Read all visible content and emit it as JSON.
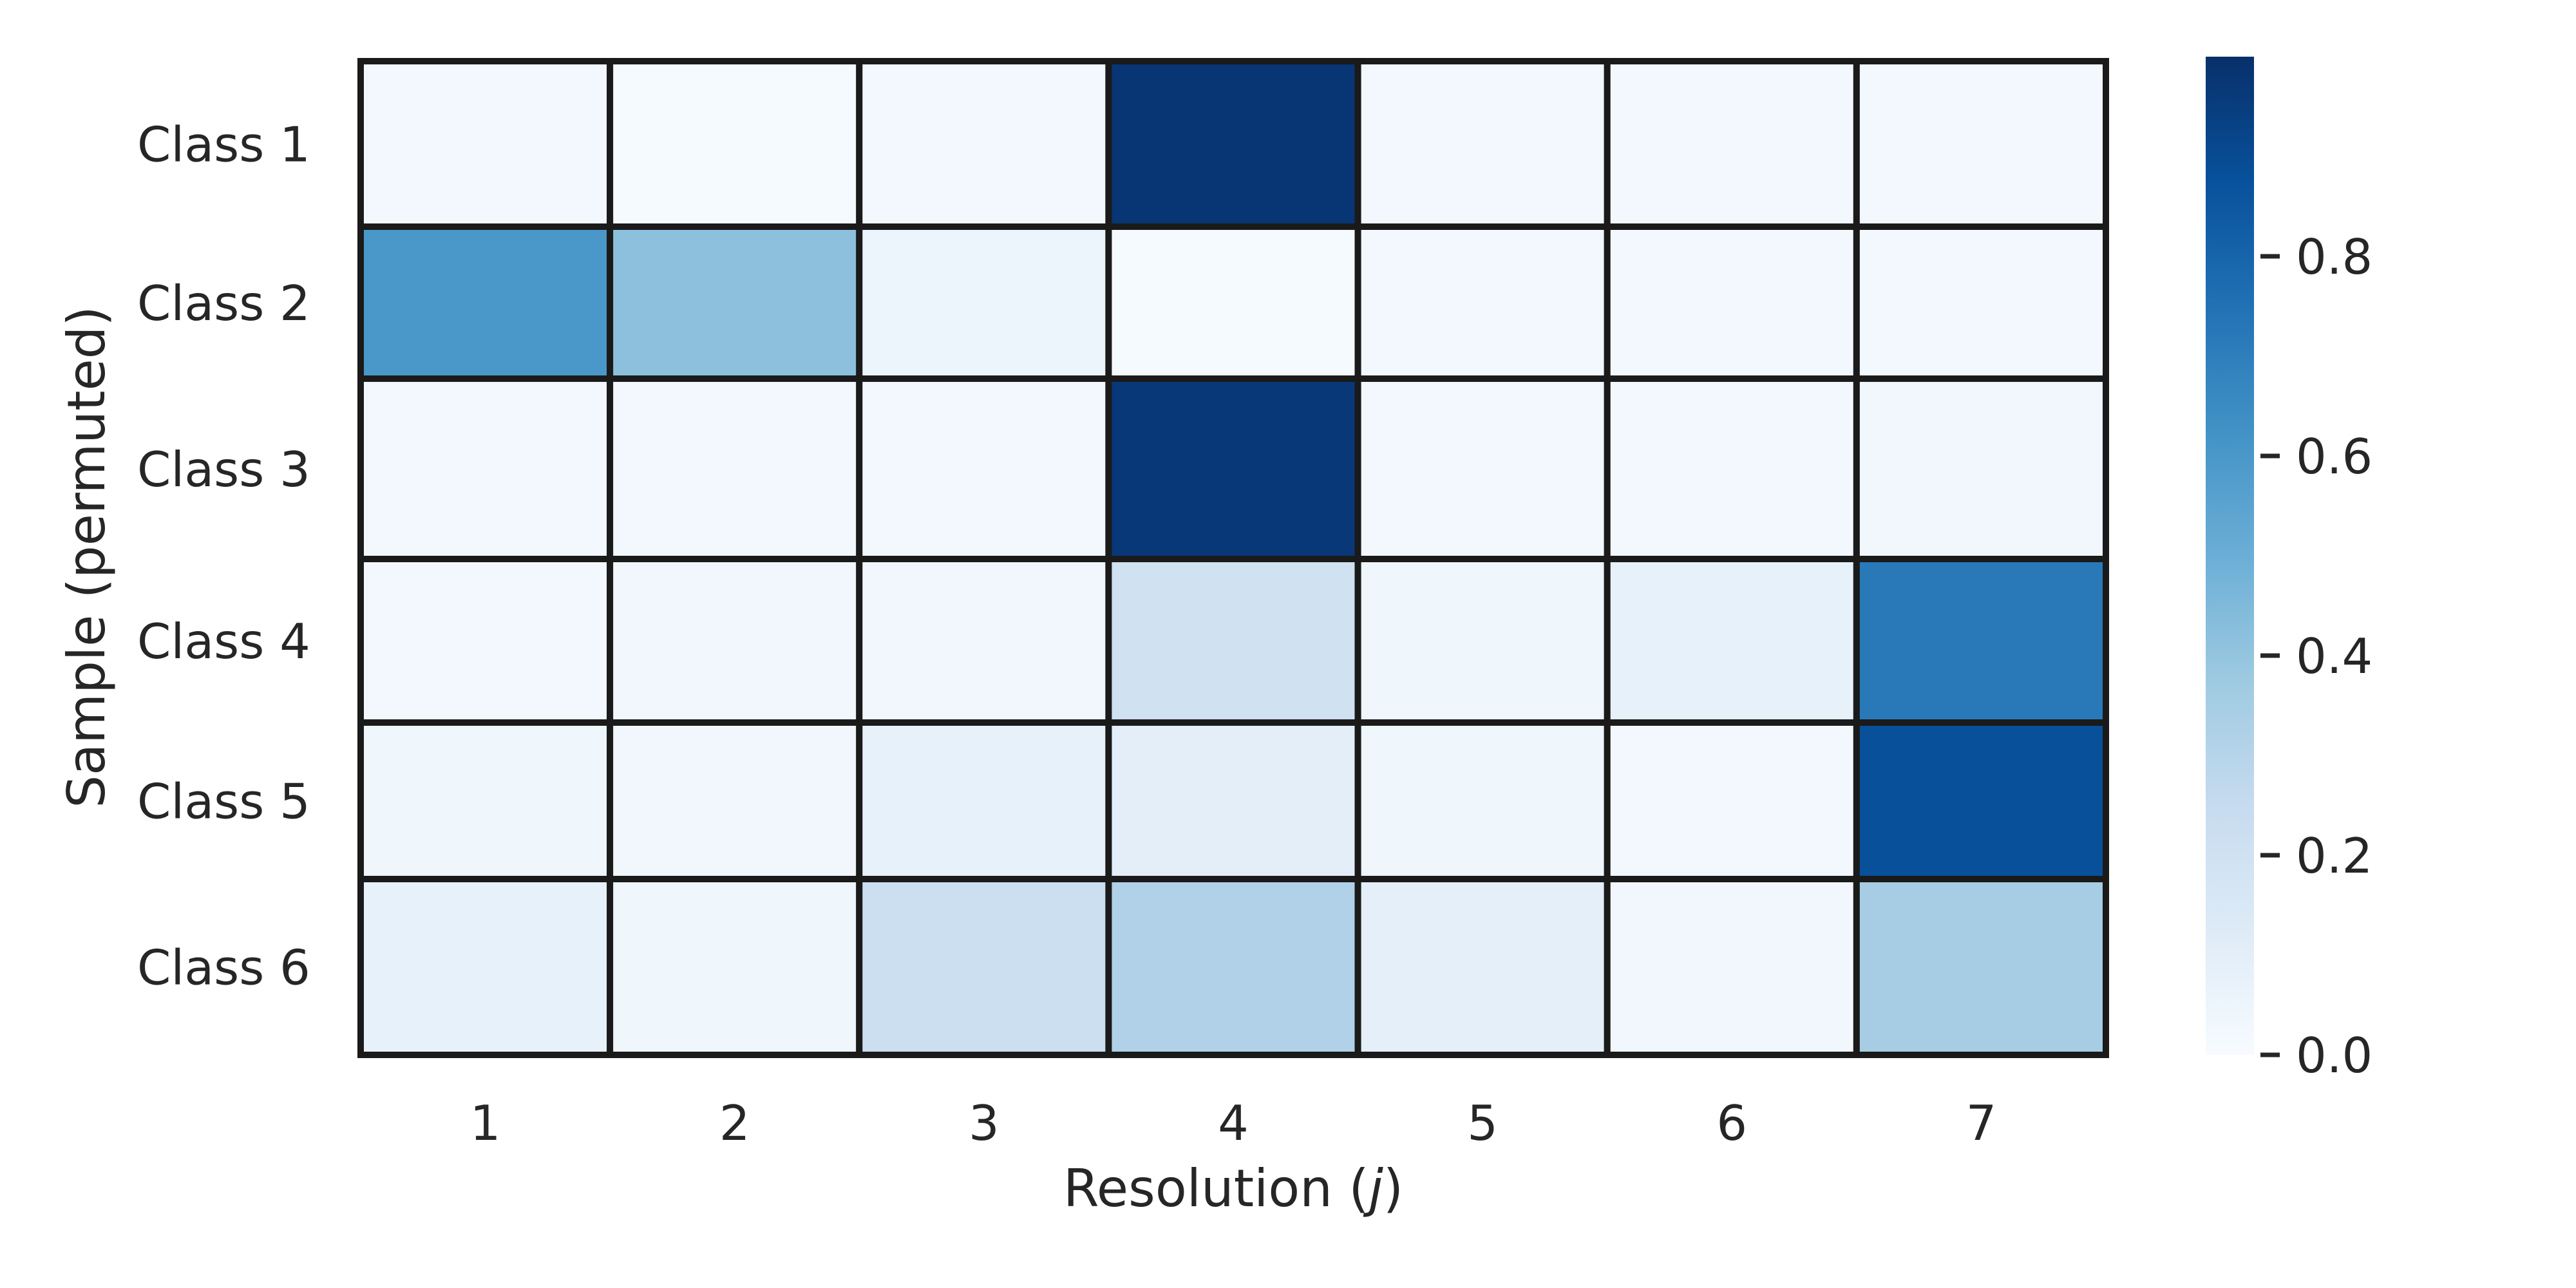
{
  "chart_data": {
    "type": "heatmap",
    "title": "",
    "xlabel": "Resolution (",
    "xlabel_var": "j",
    "xlabel_close": ")",
    "ylabel": "Sample (permuted)",
    "categories": [
      "1",
      "2",
      "3",
      "4",
      "5",
      "6",
      "7"
    ],
    "rows": [
      "Class 1",
      "Class 2",
      "Class 3",
      "Class 4",
      "Class 5",
      "Class 6"
    ],
    "values": [
      [
        0.02,
        0.01,
        0.02,
        0.98,
        0.02,
        0.02,
        0.02
      ],
      [
        0.6,
        0.42,
        0.05,
        0.01,
        0.02,
        0.02,
        0.02
      ],
      [
        0.02,
        0.02,
        0.02,
        0.97,
        0.02,
        0.02,
        0.03
      ],
      [
        0.02,
        0.03,
        0.03,
        0.2,
        0.04,
        0.08,
        0.72
      ],
      [
        0.04,
        0.03,
        0.08,
        0.1,
        0.04,
        0.02,
        0.88
      ],
      [
        0.08,
        0.04,
        0.22,
        0.32,
        0.09,
        0.03,
        0.35
      ]
    ],
    "colorbar": {
      "colormap": "Blues",
      "range": [
        0,
        1
      ],
      "ticks": [
        0.0,
        0.2,
        0.4,
        0.6,
        0.8
      ],
      "tick_labels": [
        "0.0",
        "0.2",
        "0.4",
        "0.6",
        "0.8"
      ]
    },
    "grid": false,
    "cell_border_color": "#1a1a1a"
  }
}
